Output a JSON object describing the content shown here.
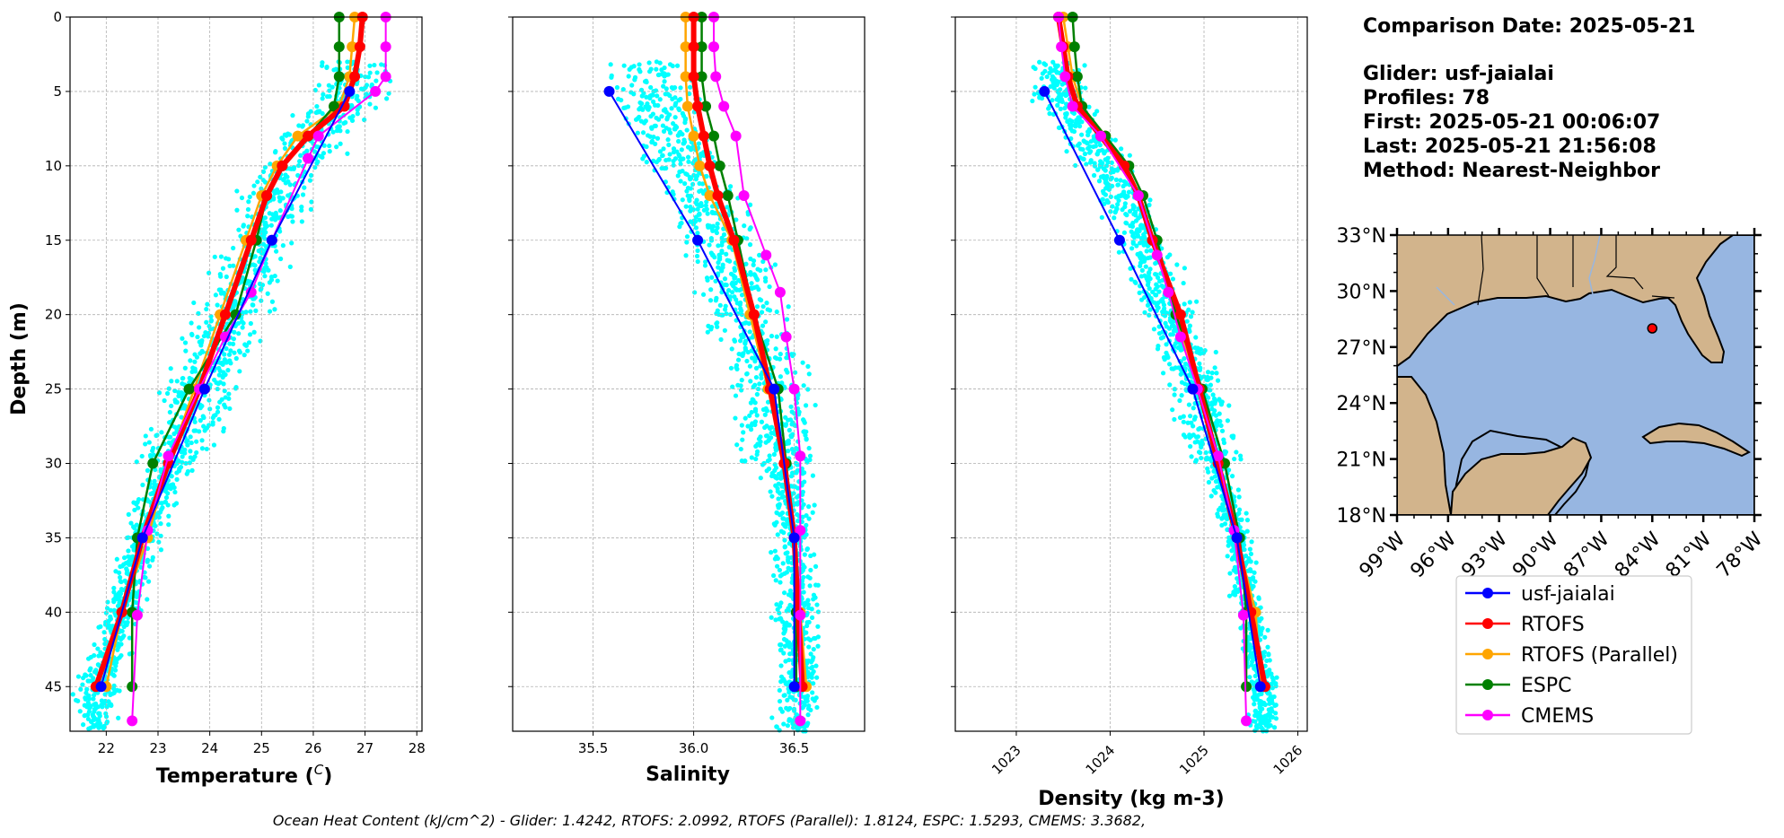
{
  "info": {
    "comparison_date": "Comparison Date: 2025-05-21",
    "glider": "Glider: usf-jaialai",
    "profiles": "Profiles: 78",
    "first": "First: 2025-05-21 00:06:07",
    "last": "Last: 2025-05-21 21:56:08",
    "method": "Method: Nearest-Neighbor"
  },
  "footer": "Ocean Heat Content (kJ/cm^2) - Glider: 1.4242,  RTOFS: 2.0992,  RTOFS (Parallel): 1.8124,  ESPC: 1.5293,  CMEMS: 3.3682,",
  "colors": {
    "glider": "#0000ff",
    "rtofs": "#ff0000",
    "rtofs_parallel": "#ffa500",
    "espc": "#008000",
    "cmems": "#ff00ff",
    "scatter": "#00ffff",
    "land": "#d2b48c",
    "water": "#97b6e1"
  },
  "chart_data": [
    {
      "type": "line",
      "name": "temperature",
      "xlabel": "Temperature",
      "xlabel_unit": "C",
      "ylabel": "Depth (m)",
      "xlim": [
        21.3,
        28.1
      ],
      "ylim": [
        48,
        0
      ],
      "xticks": [
        22,
        23,
        24,
        25,
        26,
        27,
        28
      ],
      "yticks": [
        0,
        5,
        10,
        15,
        20,
        25,
        30,
        35,
        40,
        45
      ],
      "grid": true,
      "scatter_note": "glider profile points (cyan)",
      "series": [
        {
          "name": "usf-jaialai",
          "key": "glider",
          "depth": [
            5,
            15,
            25,
            35,
            45
          ],
          "values": [
            26.7,
            25.2,
            23.9,
            22.7,
            21.9
          ]
        },
        {
          "name": "RTOFS",
          "key": "rtofs",
          "depth": [
            0,
            2,
            4,
            6,
            8,
            10,
            12,
            15,
            20,
            25,
            30,
            35,
            40,
            45
          ],
          "values": [
            26.95,
            26.9,
            26.8,
            26.6,
            25.9,
            25.4,
            25.1,
            24.8,
            24.3,
            23.8,
            23.2,
            22.7,
            22.3,
            21.8
          ]
        },
        {
          "name": "RTOFS (Parallel)",
          "key": "rtofs_parallel",
          "depth": [
            0,
            2,
            4,
            6,
            8,
            10,
            12,
            15,
            20,
            25,
            30,
            35,
            40,
            45
          ],
          "values": [
            26.8,
            26.75,
            26.7,
            26.5,
            25.7,
            25.3,
            25.0,
            24.7,
            24.2,
            23.7,
            23.2,
            22.8,
            22.3,
            22.0
          ]
        },
        {
          "name": "ESPC",
          "key": "espc",
          "depth": [
            0,
            2,
            4,
            6,
            8,
            10,
            12,
            15,
            20,
            25,
            30,
            35,
            40,
            45
          ],
          "values": [
            26.5,
            26.5,
            26.5,
            26.4,
            25.9,
            25.4,
            25.1,
            24.9,
            24.5,
            23.6,
            22.9,
            22.6,
            22.5,
            22.5
          ]
        },
        {
          "name": "CMEMS",
          "key": "cmems",
          "depth": [
            0,
            2,
            4,
            5,
            8,
            9.5,
            15,
            18.5,
            21.5,
            25,
            29.5,
            34.5,
            40.2,
            47.3
          ],
          "values": [
            27.4,
            27.4,
            27.4,
            27.2,
            26.1,
            25.9,
            25.2,
            24.8,
            24.3,
            23.8,
            23.2,
            22.8,
            22.6,
            22.5
          ]
        }
      ]
    },
    {
      "type": "line",
      "name": "salinity",
      "xlabel": "Salinity",
      "xlim": [
        35.1,
        36.85
      ],
      "ylim": [
        48,
        0
      ],
      "xticks": [
        35.5,
        36.0,
        36.5
      ],
      "xtick_labels": [
        "35.5",
        "36.0",
        "36.5"
      ],
      "grid": true,
      "series": [
        {
          "name": "usf-jaialai",
          "key": "glider",
          "depth": [
            5,
            15,
            25,
            35,
            45
          ],
          "values": [
            35.58,
            36.02,
            36.4,
            36.5,
            36.5
          ]
        },
        {
          "name": "RTOFS",
          "key": "rtofs",
          "depth": [
            0,
            2,
            4,
            6,
            8,
            10,
            12,
            15,
            20,
            25,
            30,
            35,
            40,
            45
          ],
          "values": [
            36.0,
            36.0,
            36.0,
            36.02,
            36.05,
            36.08,
            36.12,
            36.2,
            36.3,
            36.38,
            36.45,
            36.5,
            36.52,
            36.54
          ]
        },
        {
          "name": "RTOFS (Parallel)",
          "key": "rtofs_parallel",
          "depth": [
            0,
            2,
            4,
            6,
            8,
            10,
            12,
            15,
            20,
            25,
            30,
            35,
            40,
            45
          ],
          "values": [
            35.96,
            35.96,
            35.96,
            35.97,
            36.0,
            36.03,
            36.08,
            36.19,
            36.28,
            36.37,
            36.45,
            36.5,
            36.53,
            36.56
          ]
        },
        {
          "name": "ESPC",
          "key": "espc",
          "depth": [
            0,
            2,
            4,
            6,
            8,
            10,
            12,
            15,
            20,
            25,
            30,
            35,
            40,
            45
          ],
          "values": [
            36.04,
            36.04,
            36.04,
            36.06,
            36.1,
            36.13,
            36.17,
            36.22,
            36.3,
            36.42,
            36.46,
            36.5,
            36.51,
            36.51
          ]
        },
        {
          "name": "CMEMS",
          "key": "cmems",
          "depth": [
            0,
            2,
            4,
            6,
            8,
            12,
            16,
            18.5,
            21.5,
            25,
            29.5,
            34.5,
            40.2,
            47.3
          ],
          "values": [
            36.1,
            36.1,
            36.11,
            36.15,
            36.21,
            36.25,
            36.36,
            36.43,
            36.46,
            36.5,
            36.53,
            36.53,
            36.53,
            36.53
          ]
        }
      ]
    },
    {
      "type": "line",
      "name": "density",
      "xlabel": "Density (kg m-3)",
      "xlim": [
        1022.35,
        1026.1
      ],
      "ylim": [
        48,
        0
      ],
      "xticks": [
        1023,
        1024,
        1025,
        1026
      ],
      "grid": true,
      "series": [
        {
          "name": "usf-jaialai",
          "key": "glider",
          "depth": [
            5,
            15,
            25,
            35,
            45
          ],
          "values": [
            1023.3,
            1024.1,
            1024.88,
            1025.35,
            1025.6
          ]
        },
        {
          "name": "RTOFS",
          "key": "rtofs",
          "depth": [
            0,
            2,
            4,
            6,
            8,
            10,
            12,
            15,
            20,
            25,
            30,
            35,
            40,
            45
          ],
          "values": [
            1023.45,
            1023.5,
            1023.55,
            1023.65,
            1023.9,
            1024.15,
            1024.3,
            1024.45,
            1024.75,
            1024.95,
            1025.15,
            1025.35,
            1025.5,
            1025.65
          ]
        },
        {
          "name": "RTOFS (Parallel)",
          "key": "rtofs_parallel",
          "depth": [
            0,
            2,
            4,
            6,
            8,
            10,
            12,
            15,
            20,
            25,
            30,
            35,
            40,
            45
          ],
          "values": [
            1023.5,
            1023.55,
            1023.6,
            1023.7,
            1023.95,
            1024.15,
            1024.3,
            1024.45,
            1024.7,
            1024.95,
            1025.15,
            1025.35,
            1025.55,
            1025.6
          ]
        },
        {
          "name": "ESPC",
          "key": "espc",
          "depth": [
            0,
            2,
            4,
            6,
            8,
            10,
            12,
            15,
            20,
            25,
            30,
            35,
            40,
            45
          ],
          "values": [
            1023.6,
            1023.62,
            1023.65,
            1023.7,
            1023.95,
            1024.2,
            1024.35,
            1024.5,
            1024.7,
            1024.98,
            1025.22,
            1025.38,
            1025.45,
            1025.45
          ]
        },
        {
          "name": "CMEMS",
          "key": "cmems",
          "depth": [
            0,
            2,
            4,
            6,
            8,
            12,
            16,
            18.5,
            21.5,
            25,
            29.5,
            34.5,
            40.2,
            47.3
          ],
          "values": [
            1023.45,
            1023.48,
            1023.52,
            1023.6,
            1023.9,
            1024.3,
            1024.5,
            1024.62,
            1024.75,
            1024.93,
            1025.15,
            1025.32,
            1025.42,
            1025.45
          ]
        }
      ]
    }
  ],
  "map": {
    "lat_ticks": [
      "33°N",
      "30°N",
      "27°N",
      "24°N",
      "21°N",
      "18°N"
    ],
    "lon_ticks": [
      "99°W",
      "96°W",
      "93°W",
      "90°W",
      "87°W",
      "84°W",
      "81°W",
      "78°W"
    ],
    "marker_lon": -84.0,
    "marker_lat": 28.0
  },
  "legend": [
    {
      "label": "usf-jaialai",
      "key": "glider"
    },
    {
      "label": "RTOFS",
      "key": "rtofs"
    },
    {
      "label": "RTOFS (Parallel)",
      "key": "rtofs_parallel"
    },
    {
      "label": "ESPC",
      "key": "espc"
    },
    {
      "label": "CMEMS",
      "key": "cmems"
    }
  ]
}
